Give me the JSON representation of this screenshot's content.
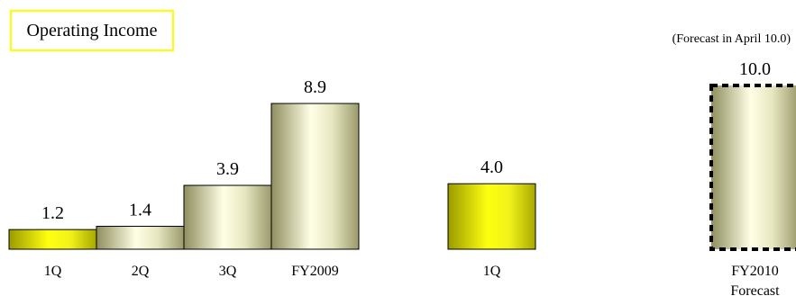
{
  "title": "Operating Income",
  "note": "(Forecast in April 10.0)",
  "chart_data": {
    "type": "bar",
    "title": "Operating Income",
    "categories": [
      "1Q",
      "2Q",
      "3Q",
      "FY2009",
      "1Q",
      "FY2010\nForecast"
    ],
    "values": [
      1.2,
      1.4,
      3.9,
      8.9,
      4.0,
      10.0
    ],
    "labels": [
      "1.2",
      "1.4",
      "3.9",
      "8.9",
      "4.0",
      "10.0"
    ],
    "forecast_index": 5,
    "grid": false,
    "legend": "none",
    "colors": {
      "yellow_fill": "#e6e600",
      "olive_fill": "#b4b48a",
      "bar_border": "#000000",
      "title_border": "#ffff00"
    }
  }
}
